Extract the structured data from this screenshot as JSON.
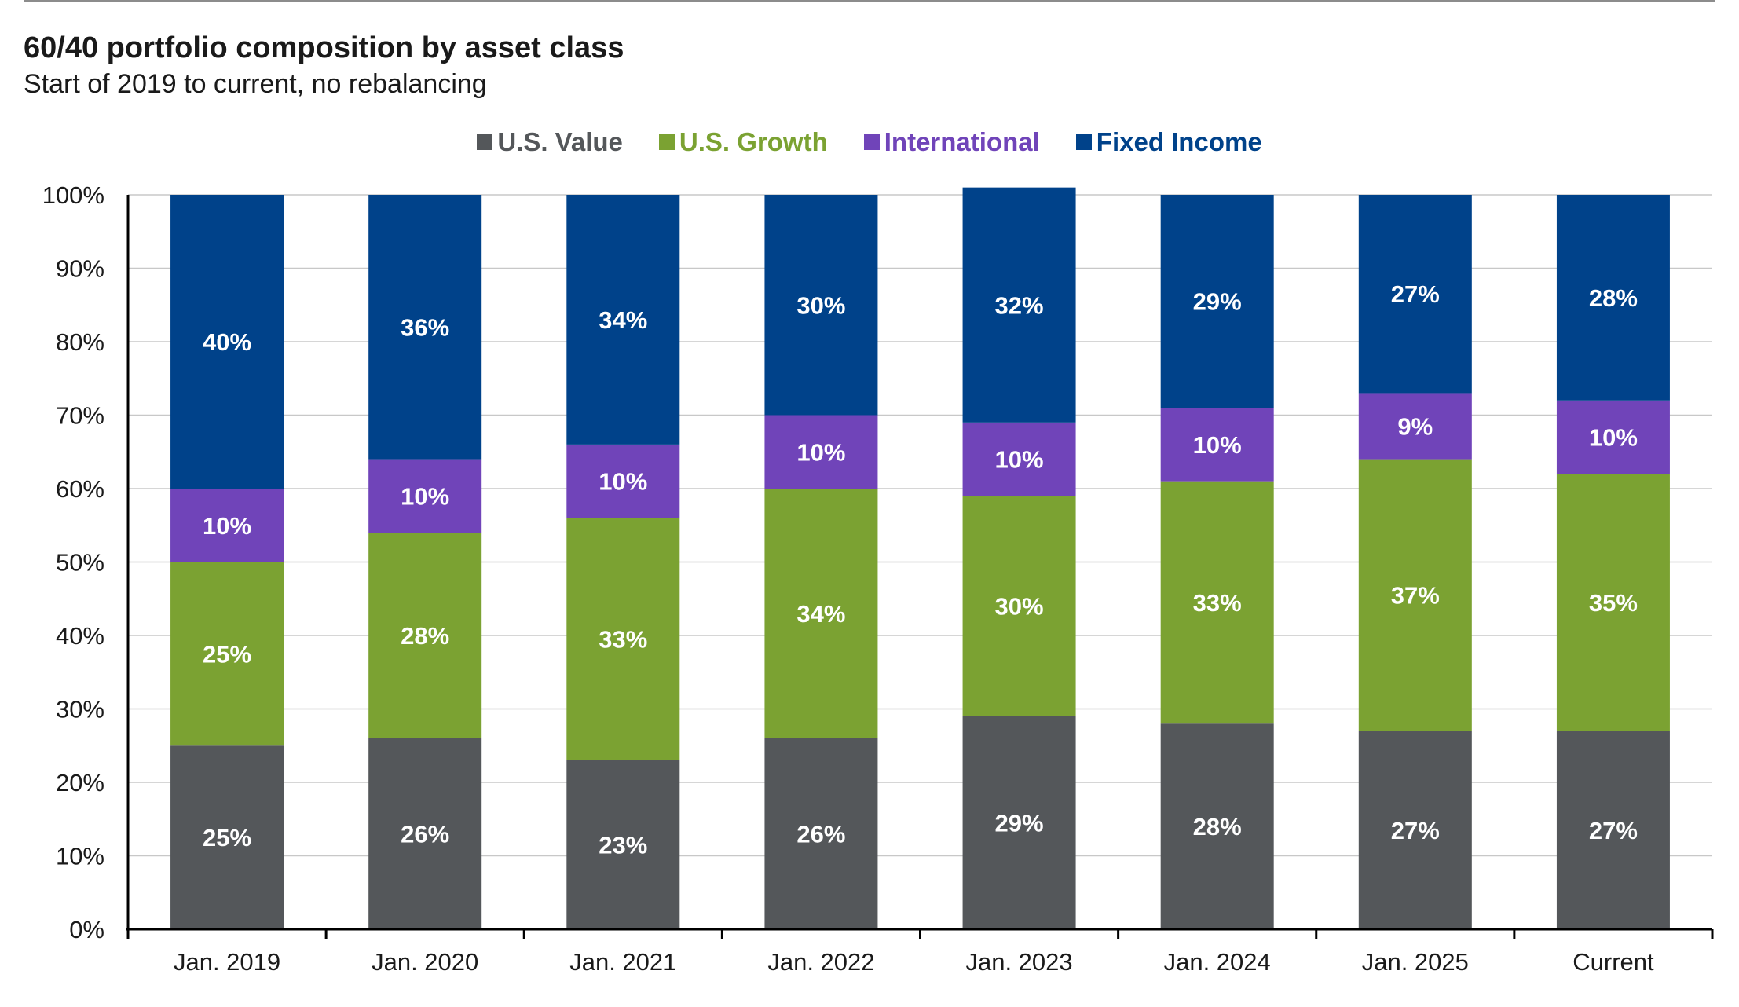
{
  "chart_data": {
    "type": "bar",
    "stacked": true,
    "title": "60/40 portfolio composition by asset class",
    "subtitle": "Start of 2019 to current, no rebalancing",
    "categories": [
      "Jan. 2019",
      "Jan. 2020",
      "Jan. 2021",
      "Jan. 2022",
      "Jan. 2023",
      "Jan. 2024",
      "Jan. 2025",
      "Current"
    ],
    "series": [
      {
        "name": "U.S. Value",
        "color": "#54575a",
        "values": [
          25,
          26,
          23,
          26,
          29,
          28,
          27,
          27
        ],
        "labels": [
          "25%",
          "26%",
          "23%",
          "26%",
          "29%",
          "28%",
          "27%",
          "27%"
        ]
      },
      {
        "name": "U.S. Growth",
        "color": "#7ba232",
        "values": [
          25,
          28,
          33,
          34,
          30,
          33,
          37,
          35
        ],
        "labels": [
          "25%",
          "28%",
          "33%",
          "34%",
          "30%",
          "33%",
          "37%",
          "35%"
        ]
      },
      {
        "name": "International",
        "color": "#7044b9",
        "values": [
          10,
          10,
          10,
          10,
          10,
          10,
          9,
          10
        ],
        "labels": [
          "10%",
          "10%",
          "10%",
          "10%",
          "10%",
          "10%",
          "9%",
          "10%"
        ]
      },
      {
        "name": "Fixed Income",
        "color": "#00428a",
        "values": [
          40,
          36,
          34,
          30,
          32,
          29,
          27,
          28
        ],
        "labels": [
          "40%",
          "36%",
          "34%",
          "30%",
          "32%",
          "29%",
          "27%",
          "28%"
        ]
      }
    ],
    "ylim": [
      0,
      100
    ],
    "yticks": [
      "0%",
      "10%",
      "20%",
      "30%",
      "40%",
      "50%",
      "60%",
      "70%",
      "80%",
      "90%",
      "100%"
    ],
    "grid": true,
    "legend_position": "top"
  }
}
